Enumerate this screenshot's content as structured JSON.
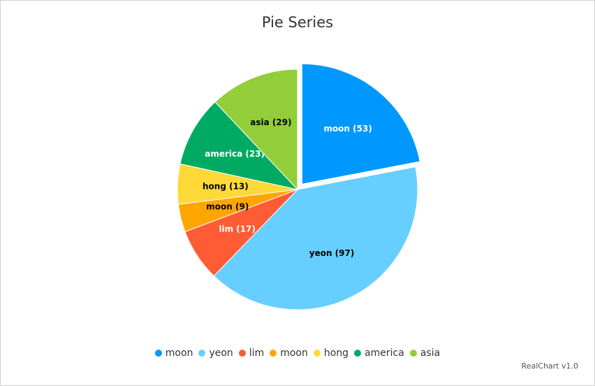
{
  "chart_data": {
    "type": "pie",
    "title": "Pie Series",
    "slices": [
      {
        "name": "moon",
        "value": 53,
        "color": "#0098ff",
        "label_color": "#ffffff",
        "exploded": true
      },
      {
        "name": "yeon",
        "value": 97,
        "color": "#66cfff",
        "label_color": "#000000",
        "exploded": false
      },
      {
        "name": "lim",
        "value": 17,
        "color": "#ff5c35",
        "label_color": "#ffffff",
        "exploded": false
      },
      {
        "name": "moon",
        "value": 9,
        "color": "#ffa500",
        "label_color": "#000000",
        "exploded": false
      },
      {
        "name": "hong",
        "value": 13,
        "color": "#ffd938",
        "label_color": "#000000",
        "exploded": false
      },
      {
        "name": "america",
        "value": 23,
        "color": "#00aa63",
        "label_color": "#ffffff",
        "exploded": false
      },
      {
        "name": "asia",
        "value": 29,
        "color": "#93ce3a",
        "label_color": "#000000",
        "exploded": false
      }
    ],
    "labels": [
      "moon (53)",
      "yeon (97)",
      "lim (17)",
      "moon (9)",
      "hong (13)",
      "america (23)",
      "asia (29)"
    ],
    "legend_position": "bottom"
  },
  "credits": "RealChart v1.0"
}
